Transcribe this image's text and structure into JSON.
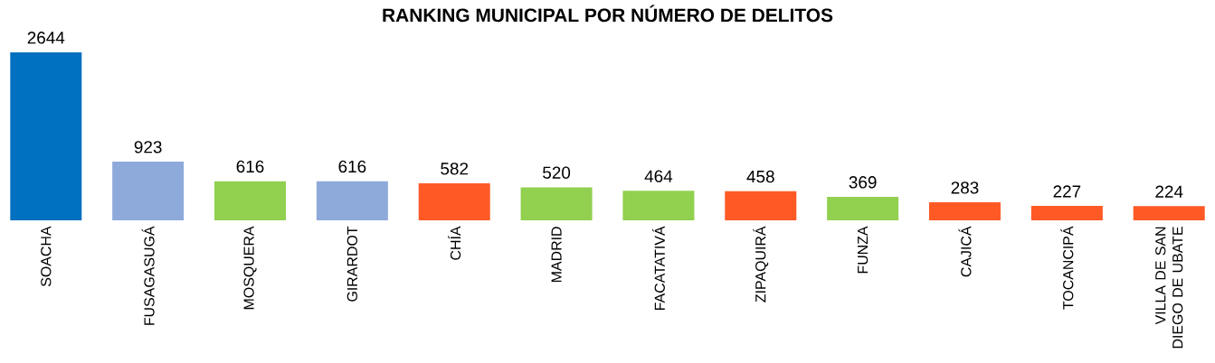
{
  "chart_data": {
    "type": "bar",
    "title": "RANKING MUNICIPAL POR NÚMERO DE DELITOS",
    "categories": [
      "SOACHA",
      "FUSAGASUGÁ",
      "MOSQUERA",
      "GIRARDOT",
      "CHÍA",
      "MADRID",
      "FACATATIVÁ",
      "ZIPAQUIRÁ",
      "FUNZA",
      "CAJICÁ",
      "TOCANCIPÁ",
      "VILLA DE SAN DIEGO DE UBATE"
    ],
    "values": [
      2644,
      923,
      616,
      616,
      582,
      520,
      464,
      458,
      369,
      283,
      227,
      224
    ],
    "colors": [
      "#0070c0",
      "#8eaadb",
      "#92d050",
      "#8eaadb",
      "#ff5a25",
      "#92d050",
      "#92d050",
      "#ff5a25",
      "#92d050",
      "#ff5a25",
      "#ff5a25",
      "#ff5a25"
    ],
    "data_labels": true
  }
}
